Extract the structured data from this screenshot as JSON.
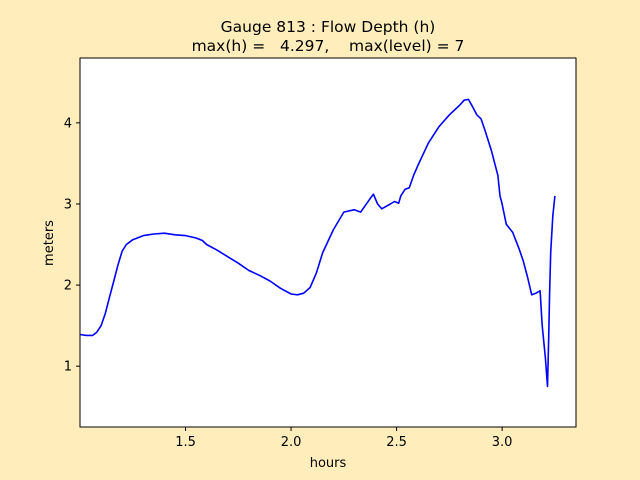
{
  "chart_data": {
    "type": "line",
    "title": "Gauge 813 : Flow Depth (h)",
    "subtitle": "max(h) =   4.297,    max(level) = 7",
    "xlabel": "hours",
    "ylabel": "meters",
    "xlim": [
      1.0,
      3.35
    ],
    "ylim": [
      0.25,
      4.8
    ],
    "xticks": [
      "1.5",
      "2.0",
      "2.5",
      "3.0"
    ],
    "yticks": [
      "1",
      "2",
      "3",
      "4"
    ],
    "grid": false,
    "colors": {
      "figure_background": "#ffeebb",
      "plot_background": "#ffffff",
      "line": "#0000ff"
    },
    "series": [
      {
        "x": [
          1.0,
          1.03,
          1.06,
          1.08,
          1.1,
          1.12,
          1.14,
          1.16,
          1.18,
          1.2,
          1.22,
          1.25,
          1.3,
          1.35,
          1.4,
          1.45,
          1.5,
          1.55,
          1.58,
          1.6,
          1.65,
          1.7,
          1.75,
          1.8,
          1.85,
          1.9,
          1.95,
          2.0,
          2.03,
          2.06,
          2.09,
          2.12,
          2.15,
          2.2,
          2.25,
          2.3,
          2.33,
          2.37,
          2.39,
          2.41,
          2.43,
          2.45,
          2.47,
          2.49,
          2.51,
          2.52,
          2.54,
          2.56,
          2.58,
          2.6,
          2.65,
          2.7,
          2.75,
          2.8,
          2.82,
          2.84,
          2.86,
          2.88,
          2.9,
          2.92,
          2.95,
          2.98,
          2.99,
          2.995,
          3.0,
          3.02,
          3.05,
          3.08,
          3.1,
          3.12,
          3.14,
          3.16,
          3.18,
          3.19,
          3.205,
          3.215,
          3.22,
          3.225,
          3.23,
          3.24,
          3.25
        ],
        "y": [
          1.39,
          1.38,
          1.38,
          1.42,
          1.5,
          1.65,
          1.85,
          2.05,
          2.25,
          2.42,
          2.5,
          2.56,
          2.61,
          2.63,
          2.64,
          2.62,
          2.61,
          2.58,
          2.55,
          2.5,
          2.43,
          2.35,
          2.27,
          2.18,
          2.12,
          2.05,
          1.96,
          1.89,
          1.88,
          1.9,
          1.97,
          2.15,
          2.4,
          2.68,
          2.9,
          2.93,
          2.9,
          3.05,
          3.12,
          3.0,
          2.94,
          2.97,
          3.0,
          3.03,
          3.01,
          3.1,
          3.18,
          3.2,
          3.35,
          3.47,
          3.75,
          3.95,
          4.1,
          4.22,
          4.28,
          4.29,
          4.2,
          4.1,
          4.05,
          3.9,
          3.65,
          3.35,
          3.1,
          3.05,
          3.0,
          2.75,
          2.65,
          2.45,
          2.3,
          2.1,
          1.88,
          1.9,
          1.93,
          1.5,
          1.1,
          0.75,
          1.3,
          1.9,
          2.4,
          2.85,
          3.1
        ]
      }
    ]
  }
}
